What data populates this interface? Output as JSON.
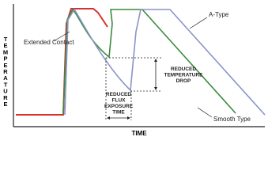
{
  "y_axis_label": "TEMPERATURE",
  "x_axis_label": "TIME",
  "annotations": {
    "extended_contact": "Extended Contact",
    "a_type": "A-Type",
    "smooth_type": "Smooth Type",
    "temperature_drop": [
      "REDUCED",
      "TEMPERATURE",
      "DROP"
    ],
    "flux_exposure": [
      "REDUCED",
      "FLUX",
      "EXPOSURE",
      "TIME"
    ]
  }
}
